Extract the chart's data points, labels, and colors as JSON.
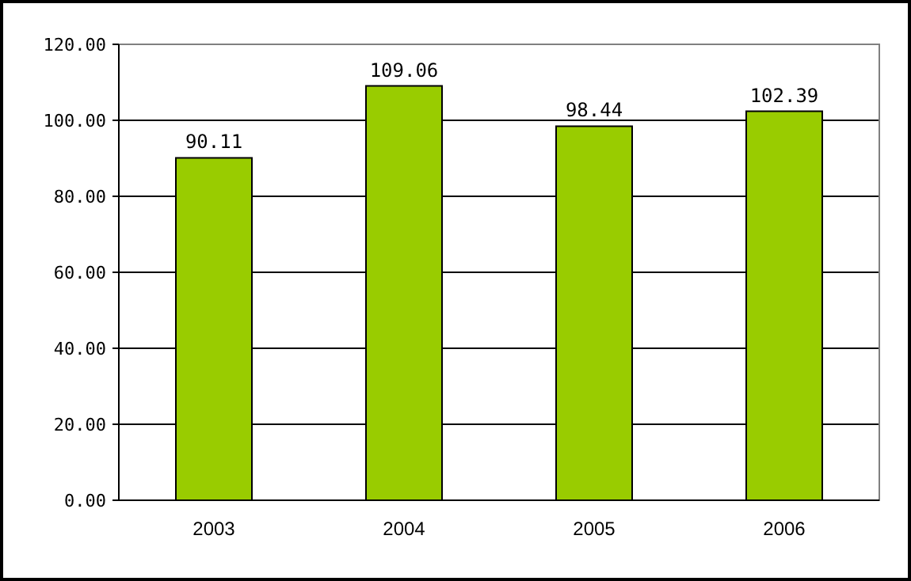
{
  "chart_data": {
    "type": "bar",
    "categories": [
      "2003",
      "2004",
      "2005",
      "2006"
    ],
    "values": [
      90.11,
      109.06,
      98.44,
      102.39
    ],
    "color": "#99cc00",
    "ylim": [
      0,
      120
    ],
    "yticks": [
      {
        "value": 0,
        "label": "0.00"
      },
      {
        "value": 20,
        "label": "20.00"
      },
      {
        "value": 40,
        "label": "40.00"
      },
      {
        "value": 60,
        "label": "60.00"
      },
      {
        "value": 80,
        "label": "80.00"
      },
      {
        "value": 100,
        "label": "100.00"
      },
      {
        "value": 120,
        "label": "120.00"
      }
    ],
    "grid": "y",
    "data_labels": true
  }
}
